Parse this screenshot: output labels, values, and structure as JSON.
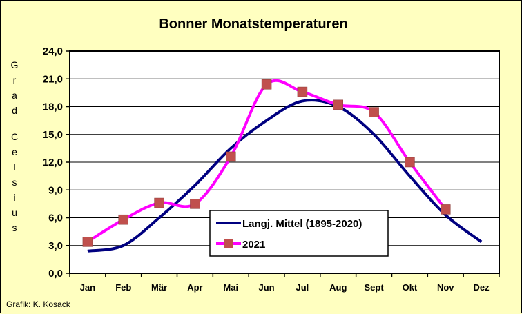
{
  "chart_data": {
    "type": "line",
    "title": "Bonner Monatstemperaturen",
    "ylabel": "Grad Celsius",
    "ylabel_words": [
      "Grad",
      "Celsius"
    ],
    "categories": [
      "Jan",
      "Feb",
      "Mär",
      "Apr",
      "Mai",
      "Jun",
      "Jul",
      "Aug",
      "Sept",
      "Okt",
      "Nov",
      "Dez"
    ],
    "ylim": [
      0,
      24
    ],
    "yticks": [
      "0,0",
      "3,0",
      "6,0",
      "9,0",
      "12,0",
      "15,0",
      "18,0",
      "21,0",
      "24,0"
    ],
    "grid": true,
    "legend_position": "bottom-right",
    "series": [
      {
        "name": "Langj. Mittel (1895-2020)",
        "color": "#000080",
        "marker": "none",
        "values": [
          2.4,
          3.0,
          6.0,
          9.5,
          13.5,
          16.5,
          18.6,
          18.0,
          15.0,
          10.5,
          6.3,
          3.4
        ]
      },
      {
        "name": "2021",
        "color": "#ff00ff",
        "marker": "square",
        "marker_color": "#c0504d",
        "values": [
          3.4,
          5.8,
          7.6,
          7.5,
          12.6,
          20.4,
          19.6,
          18.2,
          17.4,
          12.0,
          6.9,
          null
        ]
      }
    ]
  },
  "credit": "Grafik:  K. Kosack"
}
